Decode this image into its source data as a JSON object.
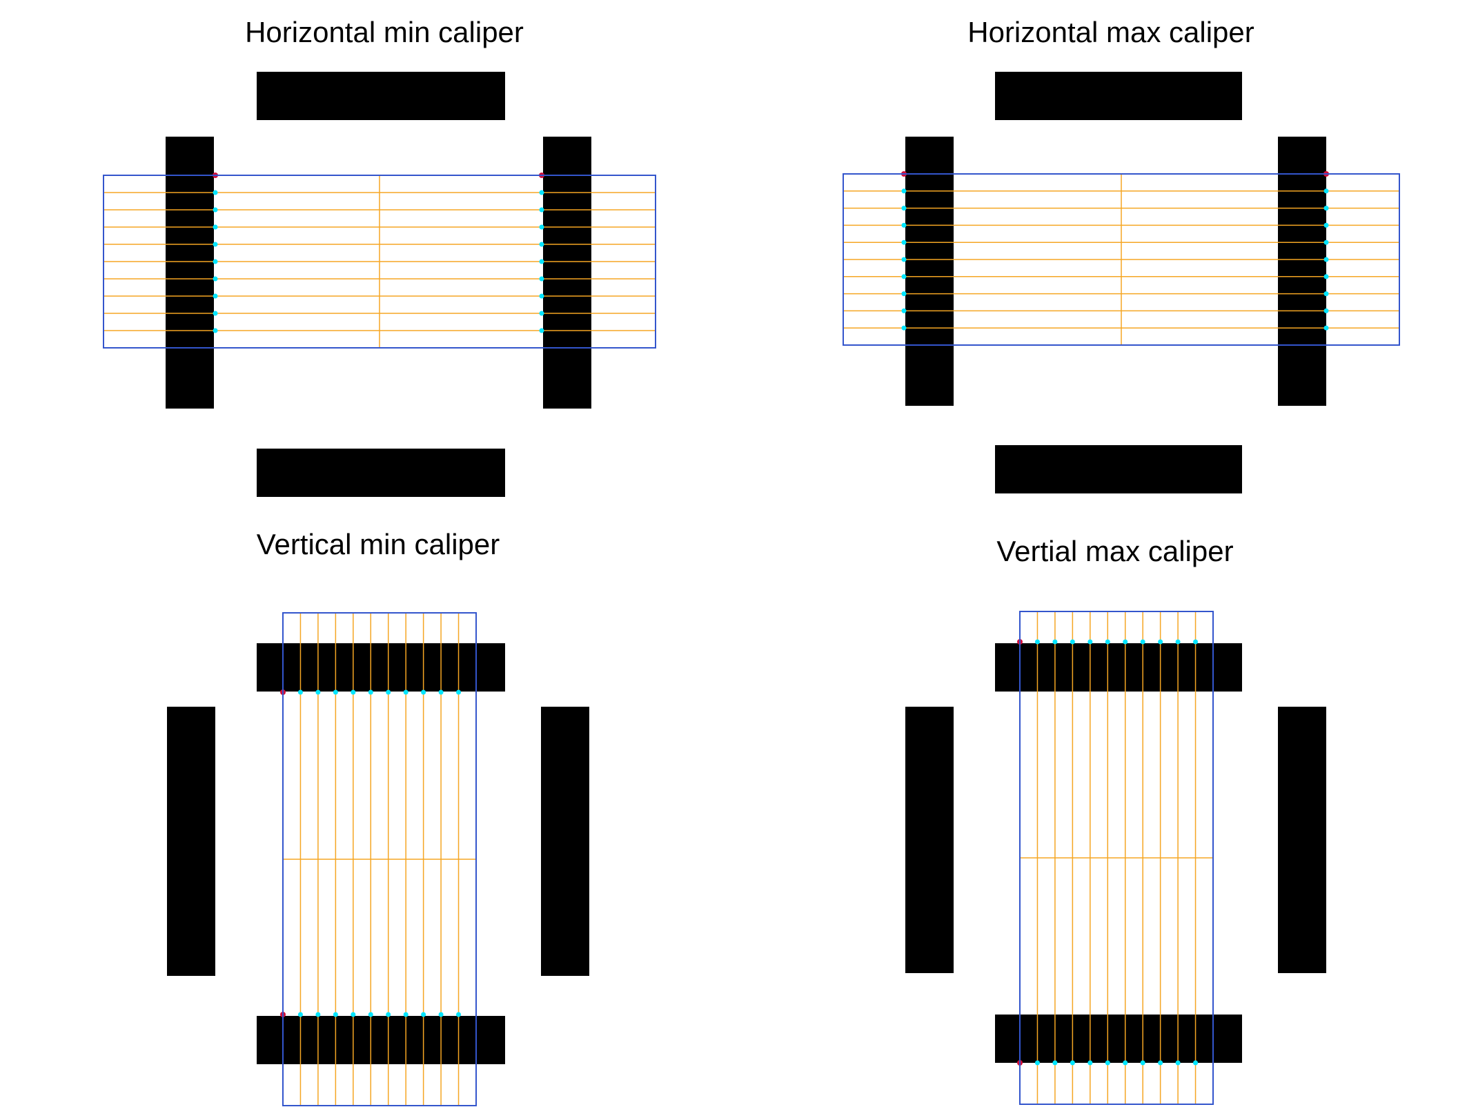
{
  "panels": [
    {
      "title": "Horizontal min caliper",
      "orientation": "horizontal",
      "mode": "min"
    },
    {
      "title": "Horizontal max caliper",
      "orientation": "horizontal",
      "mode": "max"
    },
    {
      "title": "Vertical min caliper",
      "orientation": "vertical",
      "mode": "min"
    },
    {
      "title": "Vertial max caliper",
      "orientation": "vertical",
      "mode": "max"
    }
  ],
  "colors": {
    "bar": "#000000",
    "roi": "#3355cc",
    "scanline": "#f5a623",
    "edge_point": "#00e5ff",
    "extreme_point": "#d0103a"
  },
  "scanline_count": 10
}
